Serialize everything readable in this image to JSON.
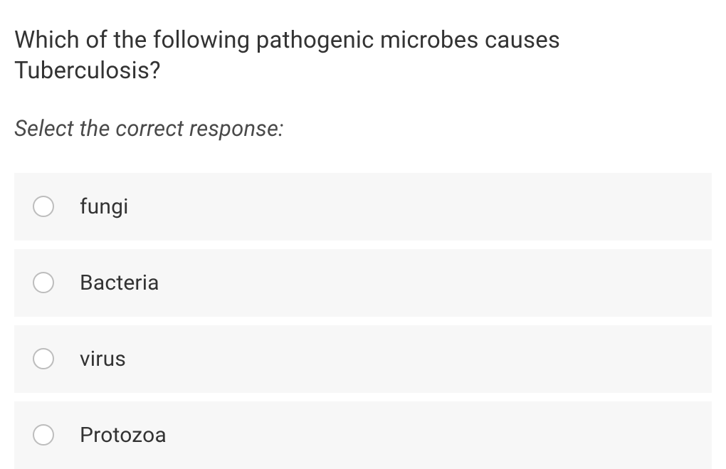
{
  "question": {
    "text": "Which of the following pathogenic microbes causes Tuberculosis?",
    "instruction": "Select the correct response:"
  },
  "options": [
    {
      "label": "fungi"
    },
    {
      "label": "Bacteria"
    },
    {
      "label": "virus"
    },
    {
      "label": "Protozoa"
    }
  ],
  "styles": {
    "question_fontsize": 33,
    "instruction_fontsize": 31,
    "option_fontsize": 30,
    "question_color": "#333333",
    "instruction_color": "#4a4a4a",
    "option_bg": "#f7f7f7",
    "radio_border": "#bdbdbd",
    "background": "#ffffff"
  }
}
